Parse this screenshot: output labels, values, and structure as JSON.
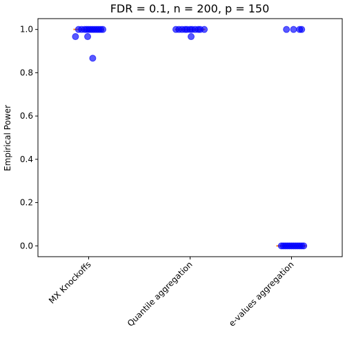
{
  "chart_data": {
    "type": "scatter",
    "title": "FDR = 0.1, n = 200, p = 150",
    "xlabel": "",
    "ylabel": "Empirical Power",
    "ylim": [
      -0.05,
      1.05
    ],
    "yticks": [
      "0.0",
      "0.2",
      "0.4",
      "0.6",
      "0.8",
      "1.0"
    ],
    "ytick_values": [
      0.0,
      0.2,
      0.4,
      0.6,
      0.8,
      1.0
    ],
    "categories": [
      "MX Knockoffs",
      "Quantile aggregation",
      "e-values aggregation"
    ],
    "grid": false,
    "point_color": "#0000ff",
    "median_color": "#ff7f0e",
    "groups": [
      {
        "category": "MX Knockoffs",
        "median": 1.0,
        "points": [
          {
            "x_offset": -0.1,
            "y": 1.0
          },
          {
            "x_offset": -0.07,
            "y": 1.0
          },
          {
            "x_offset": -0.04,
            "y": 1.0
          },
          {
            "x_offset": -0.02,
            "y": 1.0
          },
          {
            "x_offset": 0.0,
            "y": 1.0
          },
          {
            "x_offset": 0.02,
            "y": 1.0
          },
          {
            "x_offset": 0.04,
            "y": 1.0
          },
          {
            "x_offset": 0.06,
            "y": 1.0
          },
          {
            "x_offset": 0.08,
            "y": 1.0
          },
          {
            "x_offset": 0.1,
            "y": 1.0
          },
          {
            "x_offset": 0.12,
            "y": 1.0
          },
          {
            "x_offset": 0.14,
            "y": 1.0
          },
          {
            "x_offset": -0.13,
            "y": 0.967
          },
          {
            "x_offset": -0.01,
            "y": 0.967
          },
          {
            "x_offset": 0.04,
            "y": 0.867
          }
        ]
      },
      {
        "category": "Quantile aggregation",
        "median": 1.0,
        "points": [
          {
            "x_offset": -0.14,
            "y": 1.0
          },
          {
            "x_offset": -0.11,
            "y": 1.0
          },
          {
            "x_offset": -0.08,
            "y": 1.0
          },
          {
            "x_offset": -0.05,
            "y": 1.0
          },
          {
            "x_offset": -0.03,
            "y": 1.0
          },
          {
            "x_offset": 0.0,
            "y": 1.0
          },
          {
            "x_offset": 0.02,
            "y": 1.0
          },
          {
            "x_offset": 0.05,
            "y": 1.0
          },
          {
            "x_offset": 0.08,
            "y": 1.0
          },
          {
            "x_offset": 0.1,
            "y": 1.0
          },
          {
            "x_offset": 0.14,
            "y": 1.0
          },
          {
            "x_offset": 0.01,
            "y": 0.967
          }
        ]
      },
      {
        "category": "e-values aggregation",
        "median": 0.0,
        "points": [
          {
            "x_offset": -0.05,
            "y": 1.0
          },
          {
            "x_offset": 0.02,
            "y": 1.0
          },
          {
            "x_offset": 0.08,
            "y": 1.0
          },
          {
            "x_offset": 0.1,
            "y": 1.0
          },
          {
            "x_offset": -0.1,
            "y": 0.0
          },
          {
            "x_offset": -0.08,
            "y": 0.0
          },
          {
            "x_offset": -0.06,
            "y": 0.0
          },
          {
            "x_offset": -0.04,
            "y": 0.0
          },
          {
            "x_offset": -0.02,
            "y": 0.0
          },
          {
            "x_offset": 0.0,
            "y": 0.0
          },
          {
            "x_offset": 0.02,
            "y": 0.0
          },
          {
            "x_offset": 0.04,
            "y": 0.0
          },
          {
            "x_offset": 0.06,
            "y": 0.0
          },
          {
            "x_offset": 0.08,
            "y": 0.0
          },
          {
            "x_offset": 0.1,
            "y": 0.0
          },
          {
            "x_offset": 0.12,
            "y": 0.0
          }
        ]
      }
    ]
  }
}
